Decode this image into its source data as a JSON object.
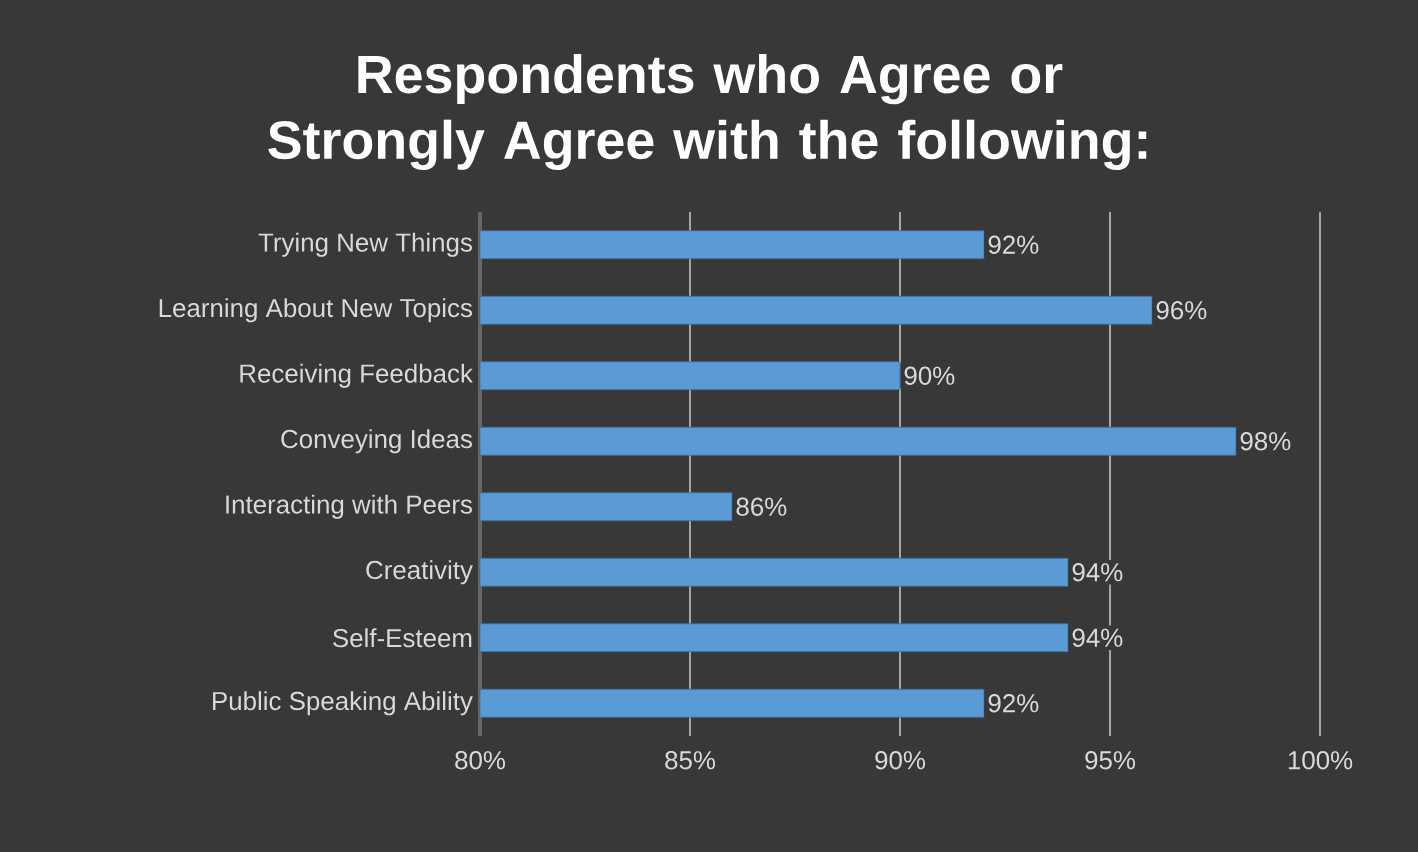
{
  "chart_data": {
    "type": "bar",
    "orientation": "horizontal",
    "title": "Respondents who Agree or Strongly Agree with the following:",
    "categories": [
      "Trying New Things",
      "Learning About New Topics",
      "Receiving Feedback",
      "Conveying Ideas",
      "Interacting with Peers",
      "Creativity",
      "Self-Esteem",
      "Public Speaking Ability"
    ],
    "values": [
      92,
      96,
      90,
      98,
      86,
      94,
      94,
      92
    ],
    "value_labels": [
      "92%",
      "96%",
      "90%",
      "98%",
      "86%",
      "94%",
      "94%",
      "92%"
    ],
    "color": "#5b9bd5",
    "xlim": [
      80,
      100
    ],
    "xticks": [
      {
        "value": 80,
        "label": "80%"
      },
      {
        "value": 85,
        "label": "85%"
      },
      {
        "value": 90,
        "label": "90%"
      },
      {
        "value": 95,
        "label": "95%"
      },
      {
        "value": 100,
        "label": "100%"
      }
    ],
    "grid": "x"
  }
}
